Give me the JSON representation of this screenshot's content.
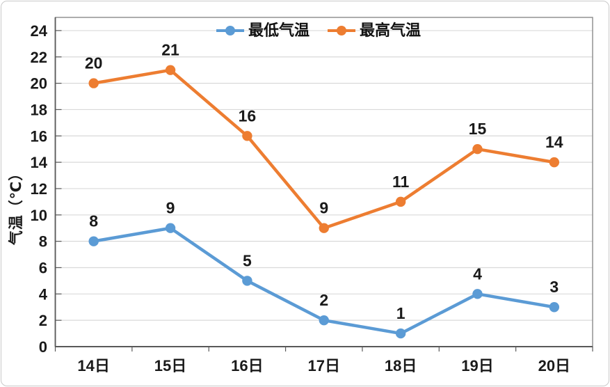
{
  "chart_data": {
    "type": "line",
    "title": "",
    "categories": [
      "14日",
      "15日",
      "16日",
      "17日",
      "18日",
      "19日",
      "20日"
    ],
    "series": [
      {
        "name": "最低气温",
        "color": "#5B9BD5",
        "values": [
          8,
          9,
          5,
          2,
          1,
          4,
          3
        ]
      },
      {
        "name": "最高气温",
        "color": "#ED7D31",
        "values": [
          20,
          21,
          16,
          9,
          11,
          15,
          14
        ]
      }
    ],
    "xlabel": "",
    "ylabel": "气温（℃）",
    "ylim": [
      0,
      25
    ],
    "y_ticks": [
      0,
      2,
      4,
      6,
      8,
      10,
      12,
      14,
      16,
      18,
      20,
      22,
      24
    ],
    "grid": true,
    "data_labels": true,
    "legend_position": "top-center",
    "marker": "circle",
    "colors": {
      "gridline": "#D9D9D9",
      "axis": "#595959",
      "plot_border": "#8A8A8A",
      "text": "#1A1A1A",
      "frame_border": "#C9C9C9"
    }
  }
}
